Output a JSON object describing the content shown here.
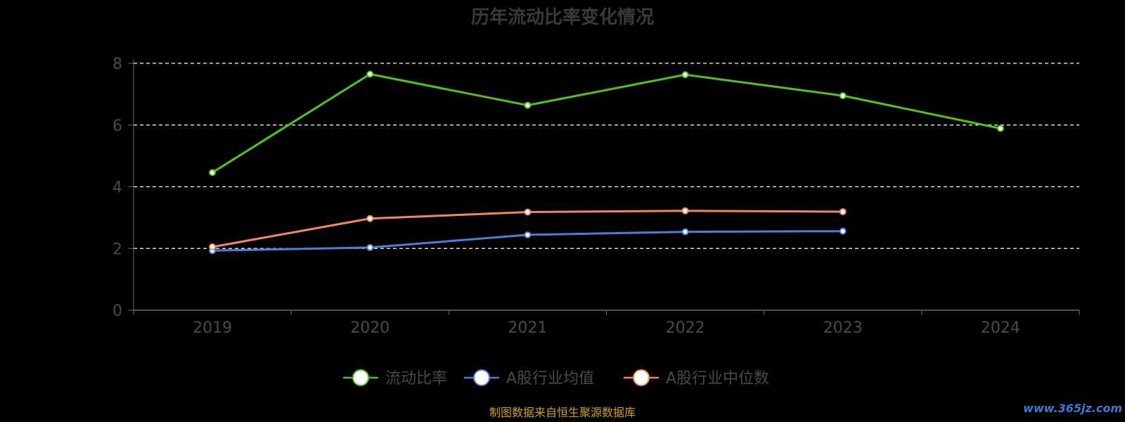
{
  "chart_data": {
    "type": "line",
    "title": "历年流动比率变化情况",
    "categories": [
      "2019",
      "2020",
      "2021",
      "2022",
      "2023",
      "2024"
    ],
    "ylim": [
      0,
      8
    ],
    "yticks": [
      0,
      2,
      4,
      6,
      8
    ],
    "grid": true,
    "grid_style": "dashed",
    "legend_position": "bottom-center",
    "series": [
      {
        "name": "流动比率",
        "color": "#52c41a",
        "values": [
          4.46,
          7.65,
          6.64,
          7.63,
          6.95,
          5.89
        ]
      },
      {
        "name": "A股行业均值",
        "color": "#4e7fd8",
        "values": [
          1.93,
          2.03,
          2.44,
          2.54,
          2.56,
          null
        ]
      },
      {
        "name": "A股行业中位数",
        "color": "#f08a5d",
        "values": [
          2.05,
          2.97,
          3.18,
          3.22,
          3.19,
          null
        ]
      }
    ]
  },
  "footer": {
    "source": "制图数据来自恒生聚源数据库",
    "watermark": "www.365jz.com"
  },
  "colors": {
    "background": "#000000",
    "axis": "#6b6b6b",
    "grid": "#ffffff",
    "text": "#4a4a4a",
    "source_text": "#c9a227",
    "watermark": "#3a7bd5"
  }
}
